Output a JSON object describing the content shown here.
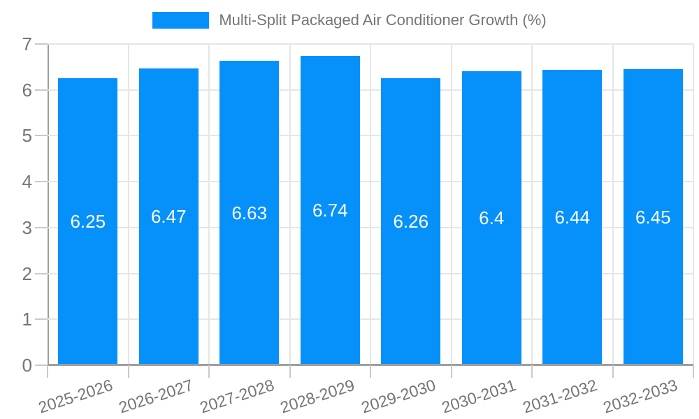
{
  "chart_data": {
    "type": "bar",
    "title": "Multi-Split Packaged Air Conditioner Growth (%)",
    "xlabel": "",
    "ylabel": "",
    "categories": [
      "2025-2026",
      "2026-2027",
      "2027-2028",
      "2028-2029",
      "2029-2030",
      "2030-2031",
      "2031-2032",
      "2032-2033"
    ],
    "values": [
      6.25,
      6.47,
      6.63,
      6.74,
      6.26,
      6.4,
      6.44,
      6.45
    ],
    "value_labels": [
      "6.25",
      "6.47",
      "6.63",
      "6.74",
      "6.26",
      "6.4",
      "6.44",
      "6.45"
    ],
    "ylim": [
      0,
      7
    ],
    "y_ticks": [
      "0",
      "1",
      "2",
      "3",
      "4",
      "5",
      "6",
      "7"
    ],
    "grid": true,
    "legend_position": "top",
    "colors": {
      "bar": "#0590FA",
      "bar_label": "#FFFFFF",
      "axis_text": "#757575",
      "legend_text": "#757575",
      "gridline": "#E6E6E6",
      "axis_line": "#9E9E9E",
      "tick": "#C9C9C9",
      "background": "#FFFFFF"
    }
  }
}
